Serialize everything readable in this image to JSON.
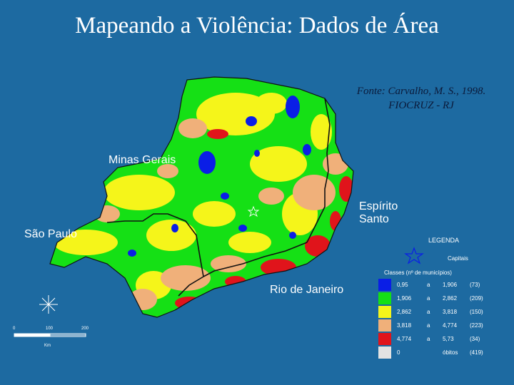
{
  "title": "Mapeando a Violência: Dados de Área",
  "source_line1": "Fonte: Carvalho, M. S., 1998.",
  "source_line2": "FIOCRUZ - RJ",
  "labels": {
    "minas": "Minas Gerais",
    "espirito_line1": "Espírito",
    "espirito_line2": "Santo",
    "sao_paulo": "São Paulo",
    "rio": "Rio de Janeiro"
  },
  "legend": {
    "title": "LEGENDA",
    "capitals": "Capitais",
    "classes_label": "Classes (nº de municípios)",
    "connector": "a",
    "classes": [
      {
        "lo": "0,95",
        "hi": "1,906",
        "count": "(73)",
        "color": "#0a1ee6"
      },
      {
        "lo": "1,906",
        "hi": "2,862",
        "count": "(209)",
        "color": "#15e015"
      },
      {
        "lo": "2,862",
        "hi": "3,818",
        "count": "(150)",
        "color": "#f5f51a"
      },
      {
        "lo": "3,818",
        "hi": "4,774",
        "count": "(223)",
        "color": "#f0b07a"
      },
      {
        "lo": "4,774",
        "hi": "5,73",
        "count": "(34)",
        "color": "#e0141b"
      },
      {
        "lo": "0",
        "hi": "óbitos",
        "count": "(419)",
        "color": "#e3e3e3"
      }
    ]
  },
  "scale": {
    "t0": "0",
    "t1": "100",
    "t2": "200",
    "unit": "Km"
  },
  "colors": {
    "background": "#1d6aa1",
    "green": "#15e015",
    "yellow": "#f5f51a",
    "orange": "#f0b07a",
    "red": "#e0141b",
    "blue": "#0a1ee6"
  }
}
